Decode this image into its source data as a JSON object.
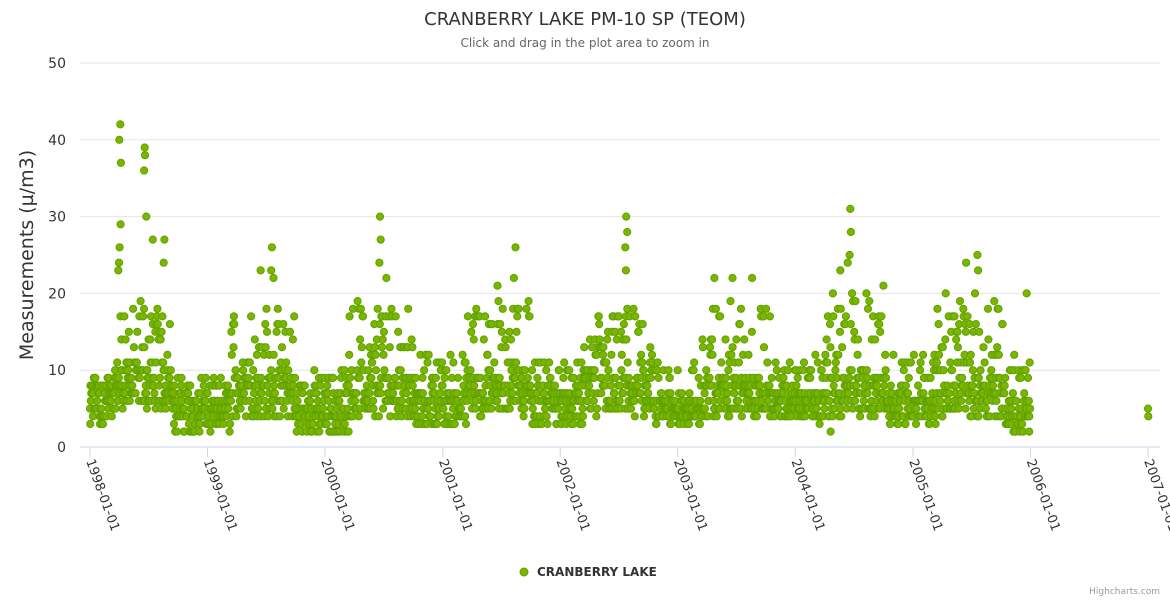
{
  "chart_data": {
    "type": "scatter",
    "title": "CRANBERRY LAKE PM-10 SP (TEOM)",
    "subtitle": "Click and drag in the plot area to zoom in",
    "ylabel": "Measurements (µ/m3)",
    "xlabel": "",
    "ylim": [
      0,
      50
    ],
    "yticks": [
      0,
      10,
      20,
      30,
      40,
      50
    ],
    "xlim": [
      "1998-01-01",
      "2007-01-01"
    ],
    "xticks": [
      "1998-01-01",
      "1999-01-01",
      "2000-01-01",
      "2001-01-01",
      "2002-01-01",
      "2003-01-01",
      "2004-01-01",
      "2005-01-01",
      "2006-01-01",
      "2007-01-01"
    ],
    "grid": true,
    "legend": "bottom-center",
    "credits": "Highcharts.com",
    "series": [
      {
        "name": "CRANBERRY LAKE",
        "color": "#5fa300",
        "fill": "#7cb500",
        "peaks": [
          [
            "1998-04-05",
            42
          ],
          [
            "1998-04-02",
            40
          ],
          [
            "1998-04-07",
            37
          ],
          [
            "1998-04-06",
            29
          ],
          [
            "1998-04-03",
            26
          ],
          [
            "1998-04-01",
            24
          ],
          [
            "1998-03-30",
            23
          ],
          [
            "1998-06-20",
            39
          ],
          [
            "1998-06-21",
            38
          ],
          [
            "1998-06-18",
            36
          ],
          [
            "1998-06-25",
            30
          ],
          [
            "1998-07-15",
            27
          ],
          [
            "1998-08-20",
            27
          ],
          [
            "1998-08-18",
            24
          ],
          [
            "1999-06-15",
            23
          ],
          [
            "1999-07-20",
            26
          ],
          [
            "1999-07-18",
            23
          ],
          [
            "1999-07-25",
            22
          ],
          [
            "2000-06-20",
            30
          ],
          [
            "2000-06-22",
            27
          ],
          [
            "2000-06-18",
            24
          ],
          [
            "2000-07-10",
            22
          ],
          [
            "2001-08-15",
            26
          ],
          [
            "2001-08-10",
            22
          ],
          [
            "2001-06-20",
            21
          ],
          [
            "2002-07-25",
            30
          ],
          [
            "2002-07-28",
            28
          ],
          [
            "2002-07-22",
            26
          ],
          [
            "2002-07-24",
            23
          ],
          [
            "2003-04-25",
            22
          ],
          [
            "2003-06-20",
            22
          ],
          [
            "2003-08-20",
            22
          ],
          [
            "2004-06-20",
            31
          ],
          [
            "2004-06-22",
            28
          ],
          [
            "2004-06-18",
            25
          ],
          [
            "2004-06-12",
            24
          ],
          [
            "2004-05-20",
            23
          ],
          [
            "2004-04-20",
            2
          ],
          [
            "2004-10-01",
            21
          ],
          [
            "2005-07-20",
            25
          ],
          [
            "2005-06-15",
            24
          ],
          [
            "2005-07-22",
            23
          ],
          [
            "2005-12-20",
            20
          ],
          [
            "1998-01-02",
            3
          ],
          [
            "2005-12-28",
            2
          ],
          [
            "2007-01-01",
            5
          ],
          [
            "2007-01-02",
            4
          ]
        ],
        "bands": [
          [
            "1998-01-01",
            "1998-03-20",
            3,
            9,
            8
          ],
          [
            "1998-03-20",
            "1998-09-15",
            5,
            19,
            11
          ],
          [
            "1998-09-15",
            "1999-03-15",
            2,
            9,
            6
          ],
          [
            "1999-03-15",
            "1999-09-30",
            4,
            18,
            10
          ],
          [
            "1999-09-30",
            "2000-03-15",
            2,
            10,
            6
          ],
          [
            "2000-03-15",
            "2000-09-30",
            4,
            19,
            10
          ],
          [
            "2000-09-30",
            "2001-03-15",
            3,
            12,
            7
          ],
          [
            "2001-03-15",
            "2001-09-30",
            4,
            19,
            10
          ],
          [
            "2001-09-30",
            "2002-03-15",
            3,
            11,
            7
          ],
          [
            "2002-03-15",
            "2002-10-15",
            4,
            18,
            10
          ],
          [
            "2002-10-15",
            "2003-03-15",
            3,
            11,
            6
          ],
          [
            "2003-03-15",
            "2003-10-15",
            4,
            19,
            9
          ],
          [
            "2003-10-15",
            "2004-03-01",
            4,
            11,
            7
          ],
          [
            "2004-03-01",
            "2004-04-01",
            3,
            12,
            7
          ],
          [
            "2004-04-01",
            "2004-10-15",
            4,
            20,
            10
          ],
          [
            "2004-10-15",
            "2005-03-15",
            3,
            12,
            7
          ],
          [
            "2005-03-15",
            "2005-10-15",
            4,
            20,
            10
          ],
          [
            "2005-10-15",
            "2006-01-01",
            2,
            12,
            6
          ]
        ]
      }
    ]
  }
}
